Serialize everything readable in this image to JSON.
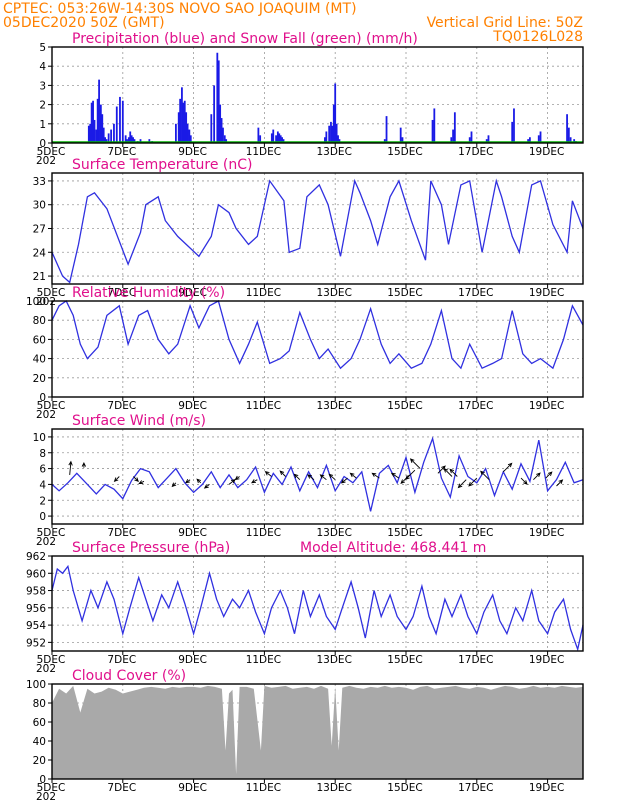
{
  "header": {
    "line1": "CPTEC:   053:26W-14:30S   NOVO SAO JOAQUIM (MT)",
    "line2_left": "05DEC2020 50Z (GMT)",
    "line2_right": "Vertical Grid Line: 50Z",
    "line3_right": "TQ0126L028"
  },
  "colors": {
    "header_text": "#ff8000",
    "panel_title": "#e0108c",
    "series_line": "#3030e0",
    "precip_bar": "#1a1ae6",
    "snow": "#00b000",
    "cloud_fill": "#a9a9a9",
    "arrow": "#000000"
  },
  "x_axis": {
    "labels": [
      "5DEC",
      "7DEC",
      "9DEC",
      "11DEC",
      "13DEC",
      "15DEC",
      "17DEC",
      "19DEC"
    ],
    "label_days": [
      5,
      7,
      9,
      11,
      13,
      15,
      17,
      19
    ],
    "day_min": 5,
    "day_max": 20,
    "year_fragment": "202"
  },
  "chart_data": [
    {
      "type": "bar",
      "title": "Precipitation (blue) and Snow Fall (green) (mm/h)",
      "ylim": [
        0,
        5
      ],
      "yticks": [
        0,
        1,
        2,
        3,
        4,
        5
      ],
      "grid": true,
      "series": [
        {
          "name": "Precipitation",
          "x": [
            6.04,
            6.08,
            6.12,
            6.16,
            6.2,
            6.25,
            6.29,
            6.33,
            6.38,
            6.42,
            6.46,
            6.5,
            6.54,
            6.6,
            6.67,
            6.75,
            6.83,
            6.92,
            7.0,
            7.08,
            7.12,
            7.17,
            7.21,
            7.25,
            7.29,
            7.33,
            7.42,
            7.5,
            7.75,
            7.83,
            8.5,
            8.58,
            8.62,
            8.67,
            8.71,
            8.75,
            8.79,
            8.83,
            8.88,
            8.92,
            9.5,
            9.58,
            9.67,
            9.71,
            9.75,
            9.79,
            9.83,
            9.88,
            9.92,
            10.83,
            10.88,
            11.21,
            11.25,
            11.33,
            11.38,
            11.42,
            11.46,
            11.5,
            11.54,
            12.71,
            12.75,
            12.83,
            12.88,
            12.92,
            12.96,
            13.0,
            13.04,
            13.08,
            13.12,
            14.4,
            14.45,
            14.85,
            14.9,
            15.75,
            15.8,
            16.28,
            16.33,
            16.38,
            16.8,
            16.85,
            17.28,
            17.33,
            18.0,
            18.05,
            18.45,
            18.5,
            18.75,
            18.8,
            19.55,
            19.6,
            19.65,
            19.75,
            19.8
          ],
          "values": [
            0.9,
            1.0,
            2.1,
            2.2,
            1.2,
            0.7,
            2.3,
            3.3,
            2.0,
            1.5,
            0.8,
            0.3,
            0.2,
            0.5,
            0.7,
            1.0,
            1.9,
            2.4,
            2.2,
            0.4,
            0.2,
            0.3,
            0.6,
            0.4,
            0.3,
            0.2,
            0.1,
            0.2,
            0.2,
            0.1,
            1.0,
            1.6,
            2.3,
            2.9,
            2.1,
            2.2,
            1.6,
            1.0,
            0.7,
            0.4,
            1.5,
            3.0,
            4.7,
            4.3,
            2.0,
            1.3,
            0.8,
            0.4,
            0.2,
            0.8,
            0.4,
            0.5,
            0.7,
            0.4,
            0.6,
            0.5,
            0.4,
            0.3,
            0.2,
            0.3,
            0.6,
            0.9,
            1.1,
            0.9,
            2.0,
            3.1,
            1.0,
            0.4,
            0.2,
            0.2,
            1.4,
            0.8,
            0.3,
            1.2,
            1.8,
            0.3,
            0.7,
            1.6,
            0.3,
            0.6,
            0.2,
            0.4,
            1.1,
            1.8,
            0.2,
            0.3,
            0.4,
            0.6,
            1.5,
            0.8,
            0.3,
            0.2,
            0.1
          ]
        },
        {
          "name": "Snow Fall",
          "x": [
            5.0,
            20.0
          ],
          "values": [
            0,
            0
          ]
        }
      ]
    },
    {
      "type": "line",
      "title": "Surface Temperature (nC)",
      "ylim": [
        20,
        34
      ],
      "yticks": [
        21,
        24,
        27,
        30,
        33
      ],
      "grid": true,
      "x": [
        5,
        5.3,
        5.5,
        5.75,
        6.0,
        6.2,
        6.55,
        7.15,
        7.5,
        7.65,
        8.0,
        8.2,
        8.55,
        9.15,
        9.5,
        9.7,
        10.0,
        10.2,
        10.55,
        10.8,
        11.15,
        11.55,
        11.7,
        12.0,
        12.2,
        12.55,
        12.8,
        13.15,
        13.55,
        13.7,
        14.0,
        14.2,
        14.55,
        14.8,
        15.15,
        15.55,
        15.7,
        16.0,
        16.2,
        16.55,
        16.8,
        17.15,
        17.55,
        17.7,
        18.0,
        18.2,
        18.55,
        18.8,
        19.15,
        19.55,
        19.7,
        20.0
      ],
      "values": [
        24.0,
        21.0,
        20.2,
        25.0,
        31.0,
        31.5,
        29.5,
        22.5,
        26.5,
        30.0,
        31.0,
        28.0,
        26.0,
        23.5,
        26.0,
        30.0,
        29.0,
        27.0,
        25.0,
        26.0,
        33.0,
        30.5,
        24.0,
        24.5,
        31.0,
        32.5,
        30.0,
        23.5,
        33.0,
        31.5,
        28.0,
        25.0,
        31.0,
        33.0,
        28.0,
        23.0,
        33.0,
        30.0,
        25.0,
        32.5,
        33.0,
        24.0,
        33.0,
        31.0,
        26.0,
        24.0,
        32.5,
        33.0,
        27.5,
        24.0,
        30.5,
        27.0
      ]
    },
    {
      "type": "line",
      "title": "Relative Humidity (%)",
      "ylim": [
        0,
        100
      ],
      "yticks": [
        0,
        20,
        40,
        60,
        80,
        100
      ],
      "grid": true,
      "x": [
        5,
        5.2,
        5.4,
        5.6,
        5.8,
        6.0,
        6.3,
        6.55,
        6.9,
        7.15,
        7.45,
        7.7,
        8.0,
        8.3,
        8.55,
        8.9,
        9.15,
        9.45,
        9.7,
        10.0,
        10.3,
        10.55,
        10.8,
        11.15,
        11.45,
        11.7,
        12.0,
        12.3,
        12.55,
        12.8,
        13.15,
        13.45,
        13.7,
        14.0,
        14.3,
        14.55,
        14.8,
        15.15,
        15.45,
        15.7,
        16.0,
        16.3,
        16.55,
        16.8,
        17.15,
        17.45,
        17.7,
        18.0,
        18.3,
        18.55,
        18.8,
        19.15,
        19.45,
        19.7,
        20.0
      ],
      "values": [
        80,
        95,
        100,
        85,
        55,
        40,
        52,
        85,
        95,
        55,
        85,
        90,
        60,
        45,
        55,
        95,
        72,
        95,
        100,
        60,
        35,
        55,
        78,
        35,
        40,
        48,
        88,
        60,
        40,
        50,
        30,
        40,
        60,
        92,
        55,
        35,
        45,
        30,
        35,
        55,
        90,
        40,
        30,
        55,
        30,
        35,
        40,
        90,
        45,
        35,
        40,
        30,
        60,
        95,
        75
      ]
    },
    {
      "type": "line",
      "title": "Surface Wind (m/s)",
      "ylim": [
        -1,
        11
      ],
      "yticks": [
        0,
        2,
        4,
        6,
        8,
        10
      ],
      "grid": true,
      "x": [
        5,
        5.2,
        5.45,
        5.7,
        6.0,
        6.25,
        6.5,
        6.75,
        7.0,
        7.25,
        7.5,
        7.75,
        8.0,
        8.25,
        8.5,
        8.75,
        9.0,
        9.25,
        9.5,
        9.75,
        10.0,
        10.25,
        10.5,
        10.75,
        11.0,
        11.25,
        11.5,
        11.75,
        12.0,
        12.25,
        12.5,
        12.75,
        13.0,
        13.25,
        13.5,
        13.75,
        14.0,
        14.25,
        14.5,
        14.75,
        15.0,
        15.25,
        15.5,
        15.75,
        16.0,
        16.25,
        16.5,
        16.75,
        17.0,
        17.25,
        17.5,
        17.75,
        18.0,
        18.25,
        18.5,
        18.75,
        19.0,
        19.25,
        19.5,
        19.75,
        20.0
      ],
      "values": [
        4.0,
        3.2,
        4.2,
        5.4,
        4.0,
        2.8,
        4.0,
        3.4,
        2.2,
        4.5,
        6.0,
        5.6,
        3.6,
        4.8,
        6.0,
        4.2,
        3.0,
        4.0,
        5.6,
        3.6,
        5.2,
        3.6,
        4.6,
        6.2,
        3.0,
        5.4,
        4.0,
        6.2,
        3.2,
        5.6,
        3.6,
        6.4,
        3.2,
        5.0,
        4.2,
        5.6,
        0.6,
        5.4,
        6.4,
        4.2,
        7.4,
        3.0,
        6.8,
        9.8,
        4.8,
        2.4,
        7.6,
        5.0,
        4.2,
        6.0,
        2.6,
        5.6,
        3.4,
        6.6,
        4.4,
        9.6,
        3.2,
        4.6,
        6.8,
        4.2,
        4.6
      ],
      "arrows": {
        "x": [
          5.5,
          5.9,
          6.9,
          7.3,
          7.6,
          8.5,
          8.9,
          9.2,
          9.45,
          10.0,
          10.3,
          10.8,
          11.2,
          11.6,
          12.0,
          12.4,
          12.75,
          13.0,
          13.35,
          13.6,
          14.25,
          14.8,
          15.1,
          15.25,
          15.4,
          15.9,
          16.3,
          16.45,
          16.7,
          17.0,
          17.35,
          17.75,
          18.25,
          18.6,
          18.95,
          19.25
        ],
        "y": [
          5.2,
          6.1,
          5.0,
          5.0,
          4.4,
          4.2,
          4.6,
          4.2,
          4.0,
          4.0,
          5.0,
          4.6,
          5.0,
          5.0,
          4.6,
          4.6,
          4.6,
          4.6,
          4.8,
          4.8,
          4.8,
          4.8,
          5.2,
          5.8,
          6.0,
          5.4,
          5.0,
          5.0,
          4.6,
          4.8,
          4.6,
          5.6,
          4.8,
          4.6,
          4.8,
          3.8
        ],
        "u": [
          0.2,
          0.0,
          -0.8,
          0.8,
          -0.8,
          -0.6,
          -0.7,
          -0.6,
          -0.8,
          1.0,
          -0.7,
          -0.9,
          -1.0,
          -0.9,
          -0.9,
          -1.0,
          -1.0,
          -1.0,
          -1.0,
          -1.0,
          -1.2,
          -1.2,
          -1.4,
          -1.5,
          -1.6,
          1.2,
          -1.3,
          -1.2,
          -1.3,
          -1.3,
          -1.4,
          1.4,
          1.0,
          1.1,
          1.0,
          1.0
        ],
        "v": [
          2.2,
          0.8,
          -0.8,
          -0.8,
          -0.4,
          -0.6,
          -0.5,
          0.6,
          -0.6,
          0.8,
          -0.5,
          -0.5,
          0.8,
          0.9,
          0.9,
          0.8,
          0.8,
          0.9,
          -0.8,
          0.8,
          0.8,
          0.8,
          -1.4,
          -1.5,
          1.6,
          1.2,
          1.3,
          1.2,
          -1.3,
          -1.3,
          1.4,
          1.4,
          -1.0,
          1.1,
          1.0,
          1.0
        ]
      }
    },
    {
      "type": "line",
      "title": "Surface Pressure (hPa)",
      "annotation": "Model Altitude: 468.441  m",
      "ylim": [
        951,
        962
      ],
      "yticks": [
        952,
        954,
        956,
        958,
        960,
        962
      ],
      "grid": true,
      "x": [
        5,
        5.15,
        5.3,
        5.45,
        5.6,
        5.85,
        6.1,
        6.3,
        6.55,
        6.75,
        7.0,
        7.2,
        7.45,
        7.65,
        7.85,
        8.1,
        8.3,
        8.55,
        8.75,
        9.0,
        9.2,
        9.45,
        9.65,
        9.85,
        10.1,
        10.3,
        10.55,
        10.75,
        11.0,
        11.2,
        11.45,
        11.65,
        11.85,
        12.1,
        12.3,
        12.55,
        12.75,
        13.0,
        13.2,
        13.45,
        13.65,
        13.85,
        14.1,
        14.3,
        14.55,
        14.75,
        15.0,
        15.2,
        15.45,
        15.65,
        15.85,
        16.1,
        16.3,
        16.55,
        16.75,
        17.0,
        17.2,
        17.45,
        17.65,
        17.85,
        18.1,
        18.3,
        18.55,
        18.75,
        19.0,
        19.2,
        19.45,
        19.65,
        19.85,
        20.0
      ],
      "values": [
        958.0,
        960.5,
        960.0,
        960.8,
        958.0,
        954.5,
        958.0,
        956.0,
        959.0,
        957.0,
        953.0,
        956.0,
        959.5,
        957.0,
        954.5,
        957.5,
        956.0,
        959.0,
        956.5,
        953.0,
        956.0,
        960.0,
        957.0,
        955.0,
        957.0,
        956.0,
        958.0,
        955.5,
        953.0,
        956.0,
        958.0,
        956.0,
        953.0,
        958.0,
        955.0,
        957.5,
        955.0,
        953.5,
        956.0,
        959.0,
        956.0,
        952.5,
        958.0,
        955.0,
        957.5,
        955.0,
        953.5,
        955.0,
        958.5,
        955.0,
        953.0,
        957.0,
        955.0,
        957.5,
        955.0,
        953.0,
        955.5,
        957.5,
        954.5,
        953.0,
        956.0,
        954.5,
        958.0,
        954.5,
        953.0,
        955.5,
        957.0,
        953.5,
        951.2,
        954.0
      ]
    },
    {
      "type": "area",
      "title": "Cloud Cover (%)",
      "ylim": [
        0,
        100
      ],
      "yticks": [
        0,
        20,
        40,
        60,
        80,
        100
      ],
      "grid": true,
      "x": [
        5,
        5.2,
        5.4,
        5.6,
        5.8,
        6.0,
        6.2,
        6.4,
        6.6,
        6.8,
        7.0,
        7.2,
        7.4,
        7.6,
        7.8,
        8.0,
        8.2,
        8.4,
        8.6,
        8.8,
        9.0,
        9.2,
        9.4,
        9.6,
        9.8,
        9.9,
        10.0,
        10.1,
        10.2,
        10.3,
        10.5,
        10.7,
        10.9,
        11.0,
        11.2,
        11.4,
        11.6,
        11.8,
        12.0,
        12.2,
        12.4,
        12.6,
        12.8,
        12.9,
        13.0,
        13.1,
        13.2,
        13.4,
        13.6,
        13.8,
        14.0,
        14.2,
        14.4,
        14.6,
        14.8,
        15.0,
        15.2,
        15.4,
        15.6,
        15.8,
        16.0,
        16.2,
        16.4,
        16.6,
        16.8,
        17.0,
        17.2,
        17.4,
        17.6,
        17.8,
        18.0,
        18.2,
        18.4,
        18.6,
        18.8,
        19.0,
        19.2,
        19.4,
        19.6,
        19.8,
        20.0
      ],
      "values": [
        80,
        95,
        90,
        98,
        70,
        95,
        90,
        92,
        96,
        94,
        90,
        92,
        94,
        96,
        97,
        96,
        95,
        97,
        96,
        97,
        97,
        96,
        98,
        97,
        95,
        30,
        90,
        94,
        5,
        97,
        97,
        95,
        30,
        98,
        96,
        97,
        98,
        95,
        96,
        97,
        95,
        98,
        95,
        35,
        97,
        30,
        96,
        98,
        96,
        95,
        97,
        96,
        98,
        96,
        97,
        96,
        94,
        97,
        98,
        95,
        96,
        97,
        98,
        96,
        95,
        97,
        96,
        94,
        96,
        98,
        97,
        95,
        96,
        98,
        96,
        97,
        96,
        98,
        97,
        96,
        97
      ]
    }
  ]
}
